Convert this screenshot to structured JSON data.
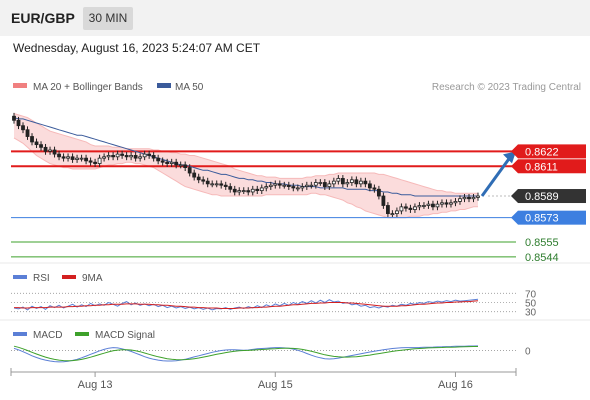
{
  "header": {
    "symbol": "EUR/GBP",
    "timeframe": "30 MIN"
  },
  "timestamp": "Wednesday, August 16, 2023 5:24:07 AM CET",
  "credit": "Research © 2023 Trading Central",
  "legends": {
    "price": [
      {
        "label": "MA 20 + Bollinger Bands",
        "color": "#f08080"
      },
      {
        "label": "MA 50",
        "color": "#3b5b9b"
      }
    ],
    "rsi": [
      {
        "label": "RSI",
        "color": "#5b7fd6"
      },
      {
        "label": "9MA",
        "color": "#d32020"
      }
    ],
    "macd": [
      {
        "label": "MACD",
        "color": "#5b7fd6"
      },
      {
        "label": "MACD Signal",
        "color": "#3ea12b"
      }
    ]
  },
  "colors": {
    "resistance": "#e11b1b",
    "support": "#3d7fe0",
    "target": "#3ea12b",
    "last": "#333333",
    "arrow": "#2f6db5",
    "bollinger_fill": "#fbdcdc"
  },
  "chart_data": [
    {
      "type": "candlestick",
      "panel": "price",
      "ylim": [
        0.8538,
        0.866
      ],
      "last_price": 0.8589,
      "levels": [
        {
          "value": 0.8622,
          "label": "0.8622",
          "kind": "resistance"
        },
        {
          "value": 0.8611,
          "label": "0.8611",
          "kind": "resistance"
        },
        {
          "value": 0.8589,
          "label": "0.8589",
          "kind": "last"
        },
        {
          "value": 0.8573,
          "label": "0.8573",
          "kind": "support"
        },
        {
          "value": 0.8555,
          "label": "0.8555",
          "kind": "target"
        },
        {
          "value": 0.8544,
          "label": "0.8544",
          "kind": "target"
        }
      ],
      "x_ticks": [
        {
          "label": "Aug 13",
          "index": 18
        },
        {
          "label": "Aug 15",
          "index": 58
        },
        {
          "label": "Aug 16",
          "index": 98
        }
      ],
      "closes": [
        0.8645,
        0.8641,
        0.8638,
        0.8633,
        0.8629,
        0.8627,
        0.8625,
        0.8622,
        0.8623,
        0.862,
        0.8618,
        0.8617,
        0.8618,
        0.8616,
        0.8617,
        0.8617,
        0.8615,
        0.8614,
        0.8613,
        0.8617,
        0.8618,
        0.8619,
        0.8618,
        0.862,
        0.8619,
        0.8618,
        0.8619,
        0.8617,
        0.8618,
        0.862,
        0.8619,
        0.8617,
        0.8615,
        0.8614,
        0.8613,
        0.8614,
        0.8612,
        0.8612,
        0.861,
        0.8606,
        0.8603,
        0.8601,
        0.86,
        0.8598,
        0.8598,
        0.8598,
        0.8597,
        0.8596,
        0.8594,
        0.8592,
        0.8593,
        0.8593,
        0.8592,
        0.8594,
        0.8593,
        0.8595,
        0.8596,
        0.8597,
        0.8598,
        0.8597,
        0.8597,
        0.8596,
        0.8595,
        0.8595,
        0.8596,
        0.8597,
        0.8597,
        0.8599,
        0.8599,
        0.8596,
        0.8598,
        0.86,
        0.8602,
        0.8598,
        0.8599,
        0.8601,
        0.8598,
        0.86,
        0.8598,
        0.8595,
        0.8594,
        0.8589,
        0.8582,
        0.8576,
        0.8576,
        0.8578,
        0.8581,
        0.858,
        0.8579,
        0.8581,
        0.8582,
        0.8582,
        0.8583,
        0.8581,
        0.8583,
        0.8584,
        0.8583,
        0.8584,
        0.8585,
        0.8587,
        0.8588,
        0.8587,
        0.8588,
        0.8589
      ],
      "ma50": [
        0.8647,
        0.8646,
        0.8646,
        0.8645,
        0.8644,
        0.8643,
        0.8642,
        0.8641,
        0.864,
        0.8639,
        0.8638,
        0.8637,
        0.8636,
        0.8635,
        0.8634,
        0.8634,
        0.8633,
        0.8632,
        0.8631,
        0.863,
        0.8629,
        0.8628,
        0.8627,
        0.8626,
        0.8625,
        0.8624,
        0.8623,
        0.8622,
        0.8621,
        0.862,
        0.8619,
        0.8618,
        0.8617,
        0.8616,
        0.8615,
        0.8614,
        0.8613,
        0.8612,
        0.8612,
        0.8611,
        0.861,
        0.8609,
        0.8608,
        0.8608,
        0.8607,
        0.8606,
        0.8605,
        0.8605,
        0.8604,
        0.8603,
        0.8602,
        0.8602,
        0.8601,
        0.8601,
        0.86,
        0.86,
        0.8599,
        0.8599,
        0.8598,
        0.8598,
        0.8598,
        0.8597,
        0.8597,
        0.8597,
        0.8596,
        0.8596,
        0.8596,
        0.8596,
        0.8595,
        0.8595,
        0.8595,
        0.8595,
        0.8595,
        0.8595,
        0.8594,
        0.8594,
        0.8594,
        0.8594,
        0.8594,
        0.8593,
        0.8593,
        0.8593,
        0.8592,
        0.8592,
        0.8591,
        0.8591,
        0.859,
        0.859,
        0.859,
        0.8589,
        0.8589,
        0.8589,
        0.8589,
        0.8589,
        0.8589,
        0.8589,
        0.8589,
        0.8589,
        0.8589,
        0.8589,
        0.8589,
        0.8589,
        0.8589,
        0.8589
      ],
      "bb_upper": [
        0.865,
        0.8649,
        0.8648,
        0.8647,
        0.8645,
        0.8643,
        0.8641,
        0.8639,
        0.8637,
        0.8636,
        0.8635,
        0.8634,
        0.8633,
        0.8632,
        0.8631,
        0.863,
        0.8629,
        0.8627,
        0.8626,
        0.8626,
        0.8626,
        0.8626,
        0.8625,
        0.8625,
        0.8625,
        0.8624,
        0.8624,
        0.8624,
        0.8624,
        0.8624,
        0.8624,
        0.8623,
        0.8623,
        0.8622,
        0.8622,
        0.8621,
        0.8621,
        0.862,
        0.862,
        0.8619,
        0.8619,
        0.8618,
        0.8617,
        0.8616,
        0.8615,
        0.8614,
        0.8613,
        0.8612,
        0.8611,
        0.8609,
        0.8608,
        0.8607,
        0.8606,
        0.8605,
        0.8604,
        0.8604,
        0.8603,
        0.8603,
        0.8603,
        0.8602,
        0.8602,
        0.8602,
        0.8602,
        0.8602,
        0.8602,
        0.8603,
        0.8603,
        0.8604,
        0.8604,
        0.8604,
        0.8605,
        0.8605,
        0.8606,
        0.8606,
        0.8606,
        0.8606,
        0.8606,
        0.8606,
        0.8606,
        0.8606,
        0.8606,
        0.8605,
        0.8605,
        0.8604,
        0.8603,
        0.8602,
        0.8601,
        0.86,
        0.8599,
        0.8598,
        0.8597,
        0.8596,
        0.8595,
        0.8594,
        0.8593,
        0.8593,
        0.8592,
        0.8592,
        0.8591,
        0.8591,
        0.8591,
        0.8591,
        0.8591,
        0.8591
      ],
      "bb_lower": [
        0.8632,
        0.863,
        0.8628,
        0.8625,
        0.8622,
        0.8619,
        0.8617,
        0.8615,
        0.8613,
        0.8612,
        0.8611,
        0.861,
        0.861,
        0.8609,
        0.8609,
        0.8609,
        0.8609,
        0.8609,
        0.8609,
        0.861,
        0.8611,
        0.8612,
        0.8612,
        0.8613,
        0.8613,
        0.8614,
        0.8614,
        0.8613,
        0.8613,
        0.8612,
        0.8611,
        0.861,
        0.8608,
        0.8606,
        0.8604,
        0.8602,
        0.86,
        0.8598,
        0.8596,
        0.8595,
        0.8594,
        0.8593,
        0.8592,
        0.8591,
        0.859,
        0.859,
        0.8589,
        0.8589,
        0.8589,
        0.8589,
        0.8589,
        0.8589,
        0.8589,
        0.8589,
        0.8589,
        0.8589,
        0.859,
        0.859,
        0.859,
        0.859,
        0.859,
        0.859,
        0.859,
        0.859,
        0.859,
        0.859,
        0.8591,
        0.8591,
        0.859,
        0.859,
        0.8589,
        0.8588,
        0.8587,
        0.8586,
        0.8584,
        0.8583,
        0.8581,
        0.858,
        0.8578,
        0.8577,
        0.8576,
        0.8575,
        0.8574,
        0.8573,
        0.8573,
        0.8573,
        0.8573,
        0.8573,
        0.8574,
        0.8574,
        0.8574,
        0.8575,
        0.8575,
        0.8576,
        0.8576,
        0.8577,
        0.8577,
        0.8578,
        0.8578,
        0.8579,
        0.8579,
        0.858,
        0.8581,
        0.8581
      ],
      "projection": {
        "from": 0.8589,
        "to": 0.8622
      }
    },
    {
      "type": "line",
      "panel": "rsi",
      "ylim": [
        25,
        75
      ],
      "y_ticks": [
        70,
        50,
        30
      ],
      "series": [
        {
          "name": "RSI",
          "values": [
            38,
            36,
            40,
            34,
            42,
            37,
            41,
            35,
            43,
            39,
            44,
            38,
            42,
            46,
            40,
            45,
            41,
            48,
            43,
            47,
            44,
            50,
            46,
            42,
            48,
            52,
            45,
            49,
            44,
            47,
            43,
            46,
            41,
            44,
            39,
            42,
            38,
            41,
            37,
            40,
            36,
            39,
            35,
            38,
            34,
            37,
            36,
            39,
            35,
            38,
            40,
            37,
            41,
            38,
            43,
            39,
            45,
            41,
            47,
            43,
            48,
            44,
            50,
            46,
            52,
            48,
            54,
            49,
            55,
            50,
            56,
            51,
            53,
            48,
            50,
            45,
            47,
            42,
            44,
            39,
            41,
            38,
            42,
            40,
            44,
            42,
            46,
            44,
            48,
            46,
            50,
            48,
            52,
            50,
            53,
            51,
            54,
            52,
            55,
            53,
            54,
            55,
            56,
            57
          ]
        },
        {
          "name": "9MA",
          "values": [
            39,
            39,
            38,
            38,
            39,
            39,
            39,
            39,
            40,
            40,
            40,
            40,
            41,
            41,
            42,
            42,
            43,
            43,
            44,
            44,
            45,
            45,
            46,
            46,
            46,
            47,
            47,
            47,
            46,
            46,
            46,
            45,
            45,
            44,
            44,
            43,
            42,
            42,
            41,
            40,
            40,
            39,
            39,
            38,
            38,
            38,
            37,
            37,
            37,
            37,
            38,
            38,
            38,
            39,
            39,
            40,
            40,
            41,
            42,
            42,
            43,
            44,
            45,
            45,
            46,
            47,
            48,
            48,
            49,
            49,
            50,
            50,
            50,
            50,
            49,
            49,
            48,
            47,
            46,
            45,
            44,
            43,
            42,
            42,
            42,
            42,
            43,
            43,
            44,
            45,
            46,
            46,
            47,
            48,
            49,
            49,
            50,
            50,
            51,
            51,
            52,
            52,
            53,
            54
          ]
        }
      ]
    },
    {
      "type": "line",
      "panel": "macd",
      "ylim": [
        -1.2,
        1.0
      ],
      "y_ticks": [
        0
      ],
      "series": [
        {
          "name": "MACD",
          "values": [
            0.15,
            0.05,
            -0.08,
            -0.22,
            -0.36,
            -0.48,
            -0.58,
            -0.66,
            -0.72,
            -0.76,
            -0.78,
            -0.77,
            -0.74,
            -0.68,
            -0.6,
            -0.5,
            -0.38,
            -0.26,
            -0.14,
            -0.02,
            0.08,
            0.16,
            0.2,
            0.18,
            0.12,
            0.04,
            -0.06,
            -0.18,
            -0.3,
            -0.42,
            -0.52,
            -0.6,
            -0.66,
            -0.7,
            -0.72,
            -0.72,
            -0.7,
            -0.66,
            -0.6,
            -0.52,
            -0.44,
            -0.36,
            -0.28,
            -0.2,
            -0.12,
            -0.06,
            0,
            0.04,
            0.06,
            0.06,
            0.04,
            0.02,
            0.04,
            0.08,
            0.12,
            0.14,
            0.16,
            0.18,
            0.2,
            0.2,
            0.18,
            0.16,
            0.1,
            0.02,
            -0.08,
            -0.2,
            -0.32,
            -0.42,
            -0.5,
            -0.56,
            -0.58,
            -0.56,
            -0.52,
            -0.46,
            -0.4,
            -0.34,
            -0.28,
            -0.22,
            -0.16,
            -0.1,
            -0.05,
            0,
            0.05,
            0.1,
            0.14,
            0.17,
            0.19,
            0.2,
            0.2,
            0.2,
            0.21,
            0.22,
            0.23,
            0.24,
            0.25,
            0.26,
            0.27,
            0.28,
            0.29,
            0.3,
            0.3,
            0.31,
            0.31,
            0.32
          ]
        },
        {
          "name": "MACD Signal",
          "values": [
            0.3,
            0.22,
            0.12,
            0.0,
            -0.12,
            -0.24,
            -0.35,
            -0.45,
            -0.54,
            -0.61,
            -0.66,
            -0.69,
            -0.7,
            -0.69,
            -0.66,
            -0.61,
            -0.54,
            -0.46,
            -0.37,
            -0.27,
            -0.18,
            -0.09,
            -0.02,
            0.03,
            0.06,
            0.06,
            0.04,
            -0.01,
            -0.08,
            -0.17,
            -0.26,
            -0.35,
            -0.43,
            -0.5,
            -0.56,
            -0.6,
            -0.62,
            -0.63,
            -0.62,
            -0.6,
            -0.56,
            -0.51,
            -0.45,
            -0.39,
            -0.32,
            -0.26,
            -0.2,
            -0.14,
            -0.09,
            -0.05,
            -0.02,
            0,
            0.01,
            0.03,
            0.05,
            0.07,
            0.09,
            0.11,
            0.13,
            0.15,
            0.16,
            0.16,
            0.15,
            0.12,
            0.08,
            0.02,
            -0.05,
            -0.13,
            -0.21,
            -0.29,
            -0.35,
            -0.4,
            -0.43,
            -0.45,
            -0.45,
            -0.44,
            -0.42,
            -0.39,
            -0.35,
            -0.31,
            -0.26,
            -0.21,
            -0.16,
            -0.11,
            -0.06,
            -0.02,
            0.02,
            0.06,
            0.09,
            0.12,
            0.14,
            0.16,
            0.18,
            0.19,
            0.2,
            0.21,
            0.22,
            0.23,
            0.24,
            0.25,
            0.26,
            0.27,
            0.28,
            0.28
          ]
        }
      ]
    }
  ]
}
